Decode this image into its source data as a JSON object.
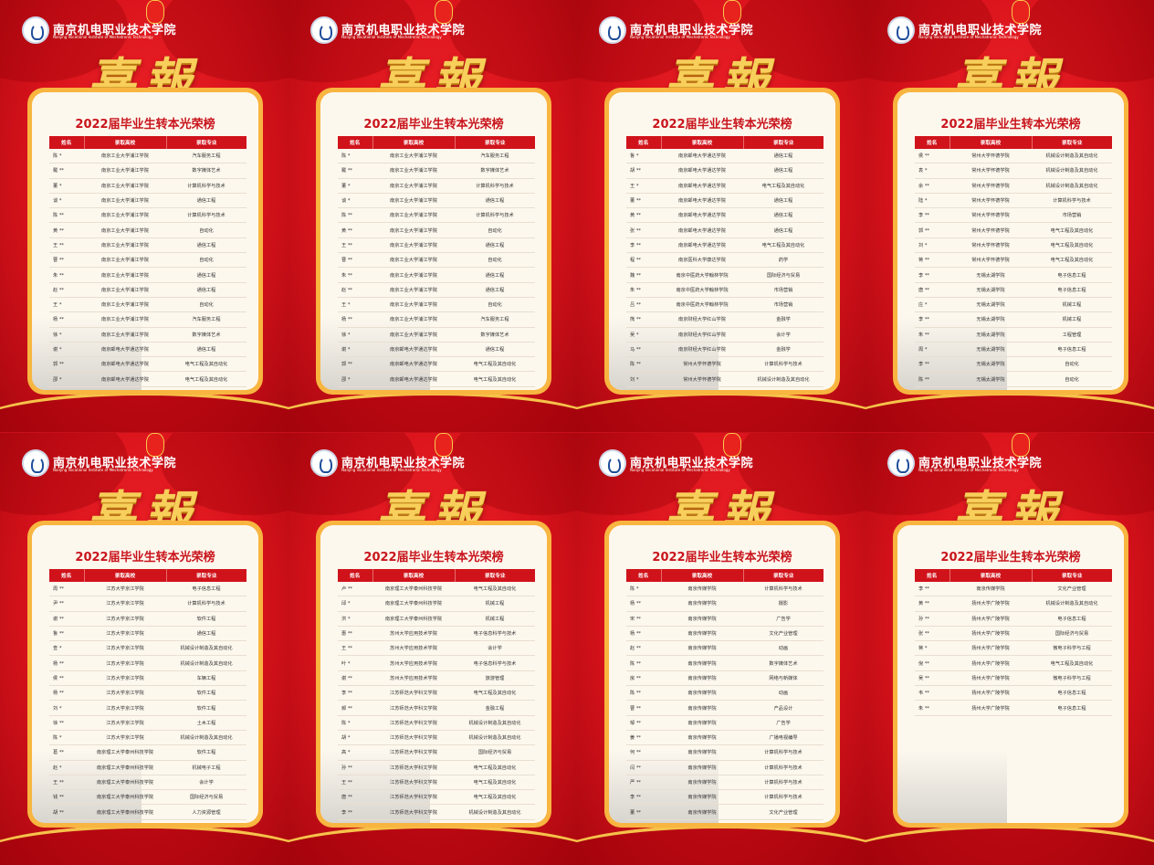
{
  "school_name": "南京机电职业技术学院",
  "school_name_en": "Nanjing Vocational Institute of Mechatronic Technology",
  "headline": "喜報",
  "title": "2022届毕业生转本光荣榜",
  "columns": [
    "姓名",
    "录取高校",
    "录取专业"
  ],
  "colors": {
    "background": "#d8121b",
    "gold": "#f7cf5a",
    "header_red": "#d0131b",
    "card": "#fdf8ee",
    "border": "#f8b540"
  },
  "posters": [
    {
      "rows": [
        [
          "陈 *",
          "南京工业大学浦江学院",
          "汽车服务工程"
        ],
        [
          "戴 **",
          "南京工业大学浦江学院",
          "数字媒体艺术"
        ],
        [
          "董 *",
          "南京工业大学浦江学院",
          "计算机科学与技术"
        ],
        [
          "谈 *",
          "南京工业大学浦江学院",
          "通信工程"
        ],
        [
          "陈 **",
          "南京工业大学浦江学院",
          "计算机科学与技术"
        ],
        [
          "黄 **",
          "南京工业大学浦江学院",
          "自动化"
        ],
        [
          "王 **",
          "南京工业大学浦江学院",
          "通信工程"
        ],
        [
          "曹 **",
          "南京工业大学浦江学院",
          "自动化"
        ],
        [
          "朱 **",
          "南京工业大学浦江学院",
          "通信工程"
        ],
        [
          "赵 **",
          "南京工业大学浦江学院",
          "通信工程"
        ],
        [
          "王 *",
          "南京工业大学浦江学院",
          "自动化"
        ],
        [
          "杨 **",
          "南京工业大学浦江学院",
          "汽车服务工程"
        ],
        [
          "徐 *",
          "南京工业大学浦江学院",
          "数字媒体艺术"
        ],
        [
          "谢 *",
          "南京邮电大学通达学院",
          "通信工程"
        ],
        [
          "郭 **",
          "南京邮电大学通达学院",
          "电气工程及其自动化"
        ],
        [
          "邵 *",
          "南京邮电大学通达学院",
          "电气工程及其自动化"
        ],
        [
          "唐 **",
          "南京邮电大学通达学院",
          "通信工程"
        ]
      ]
    },
    {
      "rows": [
        [
          "陈 *",
          "南京工业大学浦江学院",
          "汽车服务工程"
        ],
        [
          "戴 **",
          "南京工业大学浦江学院",
          "数字媒体艺术"
        ],
        [
          "董 *",
          "南京工业大学浦江学院",
          "计算机科学与技术"
        ],
        [
          "谈 *",
          "南京工业大学浦江学院",
          "通信工程"
        ],
        [
          "陈 **",
          "南京工业大学浦江学院",
          "计算机科学与技术"
        ],
        [
          "黄 **",
          "南京工业大学浦江学院",
          "自动化"
        ],
        [
          "王 **",
          "南京工业大学浦江学院",
          "通信工程"
        ],
        [
          "曹 **",
          "南京工业大学浦江学院",
          "自动化"
        ],
        [
          "朱 **",
          "南京工业大学浦江学院",
          "通信工程"
        ],
        [
          "赵 **",
          "南京工业大学浦江学院",
          "通信工程"
        ],
        [
          "王 *",
          "南京工业大学浦江学院",
          "自动化"
        ],
        [
          "杨 **",
          "南京工业大学浦江学院",
          "汽车服务工程"
        ],
        [
          "徐 *",
          "南京工业大学浦江学院",
          "数字媒体艺术"
        ],
        [
          "谢 *",
          "南京邮电大学通达学院",
          "通信工程"
        ],
        [
          "郭 **",
          "南京邮电大学通达学院",
          "电气工程及其自动化"
        ],
        [
          "邵 *",
          "南京邮电大学通达学院",
          "电气工程及其自动化"
        ],
        [
          "唐 **",
          "南京邮电大学通达学院",
          "通信工程"
        ]
      ]
    },
    {
      "rows": [
        [
          "鲁 *",
          "南京邮电大学通达学院",
          "通信工程"
        ],
        [
          "胡 **",
          "南京邮电大学通达学院",
          "通信工程"
        ],
        [
          "王 *",
          "南京邮电大学通达学院",
          "电气工程及其自动化"
        ],
        [
          "董 **",
          "南京邮电大学通达学院",
          "通信工程"
        ],
        [
          "黄 **",
          "南京邮电大学通达学院",
          "通信工程"
        ],
        [
          "张 **",
          "南京邮电大学通达学院",
          "通信工程"
        ],
        [
          "李 **",
          "南京邮电大学通达学院",
          "电气工程及其自动化"
        ],
        [
          "程 **",
          "南京医科大学康达学院",
          "药学"
        ],
        [
          "魏 **",
          "南京中医药大学翰林学院",
          "国际经济与贸易"
        ],
        [
          "朱 **",
          "南京中医药大学翰林学院",
          "市场营销"
        ],
        [
          "吕 **",
          "南京中医药大学翰林学院",
          "市场营销"
        ],
        [
          "熊 **",
          "南京财经大学红山学院",
          "金融学"
        ],
        [
          "吴 *",
          "南京财经大学红山学院",
          "会计学"
        ],
        [
          "马 **",
          "南京财经大学红山学院",
          "金融学"
        ],
        [
          "陈 **",
          "常州大学怀德学院",
          "计算机科学与技术"
        ],
        [
          "刘 *",
          "常州大学怀德学院",
          "机械设计制造及其自动化"
        ],
        [
          "周 *",
          "常州大学怀德学院",
          "市场营销"
        ]
      ]
    },
    {
      "rows": [
        [
          "侯 **",
          "常州大学怀德学院",
          "机械设计制造及其自动化"
        ],
        [
          "袁 *",
          "常州大学怀德学院",
          "机械设计制造及其自动化"
        ],
        [
          "余 **",
          "常州大学怀德学院",
          "机械设计制造及其自动化"
        ],
        [
          "陆 *",
          "常州大学怀德学院",
          "计算机科学与技术"
        ],
        [
          "李 **",
          "常州大学怀德学院",
          "市场营销"
        ],
        [
          "郭 **",
          "常州大学怀德学院",
          "电气工程及其自动化"
        ],
        [
          "刘 *",
          "常州大学怀德学院",
          "电气工程及其自动化"
        ],
        [
          "蒋 **",
          "常州大学怀德学院",
          "电气工程及其自动化"
        ],
        [
          "李 **",
          "无锡太湖学院",
          "电子信息工程"
        ],
        [
          "唐 **",
          "无锡太湖学院",
          "电子信息工程"
        ],
        [
          "庄 *",
          "无锡太湖学院",
          "机械工程"
        ],
        [
          "李 **",
          "无锡太湖学院",
          "机械工程"
        ],
        [
          "朱 **",
          "无锡太湖学院",
          "工程管理"
        ],
        [
          "周 *",
          "无锡太湖学院",
          "电子信息工程"
        ],
        [
          "李 **",
          "无锡太湖学院",
          "自动化"
        ],
        [
          "陈 **",
          "无锡太湖学院",
          "自动化"
        ],
        [
          "付 **",
          "无锡太湖学院",
          "工商管理"
        ]
      ]
    },
    {
      "rows": [
        [
          "周 **",
          "江苏大学京江学院",
          "电子信息工程"
        ],
        [
          "尹 **",
          "江苏大学京江学院",
          "计算机科学与技术"
        ],
        [
          "谢 **",
          "江苏大学京江学院",
          "软件工程"
        ],
        [
          "鲁 **",
          "江苏大学京江学院",
          "通信工程"
        ],
        [
          "查 *",
          "江苏大学京江学院",
          "机械设计制造及其自动化"
        ],
        [
          "杨 **",
          "江苏大学京江学院",
          "机械设计制造及其自动化"
        ],
        [
          "侯 **",
          "江苏大学京江学院",
          "车辆工程"
        ],
        [
          "杨 **",
          "江苏大学京江学院",
          "软件工程"
        ],
        [
          "刘 *",
          "江苏大学京江学院",
          "软件工程"
        ],
        [
          "徐 **",
          "江苏大学京江学院",
          "土木工程"
        ],
        [
          "陈 *",
          "江苏大学京江学院",
          "机械设计制造及其自动化"
        ],
        [
          "葛 **",
          "南京理工大学泰州科技学院",
          "软件工程"
        ],
        [
          "赵 *",
          "南京理工大学泰州科技学院",
          "机械电子工程"
        ],
        [
          "王 **",
          "南京理工大学泰州科技学院",
          "会计学"
        ],
        [
          "钱 **",
          "南京理工大学泰州科技学院",
          "国际经济与贸易"
        ],
        [
          "胡 **",
          "南京理工大学泰州科技学院",
          "人力资源管理"
        ],
        [
          "史 **",
          "南京理工大学泰州科技学院",
          "电子信息工程"
        ]
      ]
    },
    {
      "rows": [
        [
          "卢 **",
          "南京理工大学泰州科技学院",
          "电气工程及其自动化"
        ],
        [
          "邱 *",
          "南京理工大学泰州科技学院",
          "机械工程"
        ],
        [
          "洪 *",
          "南京理工大学泰州科技学院",
          "机械工程"
        ],
        [
          "惠 **",
          "苏州大学应用技术学院",
          "电子信息科学与技术"
        ],
        [
          "王 **",
          "苏州大学应用技术学院",
          "会计学"
        ],
        [
          "叶 *",
          "苏州大学应用技术学院",
          "电子信息科学与技术"
        ],
        [
          "谢 **",
          "苏州大学应用技术学院",
          "旅游管理"
        ],
        [
          "李 **",
          "江苏师范大学科文学院",
          "电气工程及其自动化"
        ],
        [
          "郝 **",
          "江苏师范大学科文学院",
          "金融工程"
        ],
        [
          "陈 *",
          "江苏师范大学科文学院",
          "机械设计制造及其自动化"
        ],
        [
          "胡 *",
          "江苏师范大学科文学院",
          "机械设计制造及其自动化"
        ],
        [
          "高 *",
          "江苏师范大学科文学院",
          "国际经济与贸易"
        ],
        [
          "孙 **",
          "江苏师范大学科文学院",
          "电气工程及其自动化"
        ],
        [
          "王 **",
          "江苏师范大学科文学院",
          "电气工程及其自动化"
        ],
        [
          "唐 **",
          "江苏师范大学科文学院",
          "电气工程及其自动化"
        ],
        [
          "李 **",
          "江苏师范大学科文学院",
          "机械设计制造及其自动化"
        ],
        [
          "黄 **",
          "江苏师范大学科文学院",
          "财务管理"
        ]
      ]
    },
    {
      "rows": [
        [
          "陈 *",
          "南京传媒学院",
          "计算机科学与技术"
        ],
        [
          "杨 **",
          "南京传媒学院",
          "摄影"
        ],
        [
          "宋 **",
          "南京传媒学院",
          "广告学"
        ],
        [
          "杨 **",
          "南京传媒学院",
          "文化产业管理"
        ],
        [
          "赵 **",
          "南京传媒学院",
          "动画"
        ],
        [
          "陈 **",
          "南京传媒学院",
          "数字媒体艺术"
        ],
        [
          "房 **",
          "南京传媒学院",
          "网络与新媒体"
        ],
        [
          "陈 **",
          "南京传媒学院",
          "动画"
        ],
        [
          "曹 **",
          "南京传媒学院",
          "产品设计"
        ],
        [
          "邹 **",
          "南京传媒学院",
          "广告学"
        ],
        [
          "姜 **",
          "南京传媒学院",
          "广播电视编导"
        ],
        [
          "何 **",
          "南京传媒学院",
          "计算机科学与技术"
        ],
        [
          "闫 **",
          "南京传媒学院",
          "计算机科学与技术"
        ],
        [
          "严 **",
          "南京传媒学院",
          "计算机科学与技术"
        ],
        [
          "李 **",
          "南京传媒学院",
          "计算机科学与技术"
        ],
        [
          "董 **",
          "南京传媒学院",
          "文化产业管理"
        ],
        [
          "赵 **",
          "南京传媒学院",
          "广播电视编导"
        ]
      ]
    },
    {
      "rows": [
        [
          "李 **",
          "南京传媒学院",
          "文化产业管理"
        ],
        [
          "黄 **",
          "扬州大学广陵学院",
          "机械设计制造及其自动化"
        ],
        [
          "孙 **",
          "扬州大学广陵学院",
          "电子信息工程"
        ],
        [
          "张 **",
          "扬州大学广陵学院",
          "国际经济与贸易"
        ],
        [
          "蒋 *",
          "扬州大学广陵学院",
          "微电子科学与工程"
        ],
        [
          "倪 **",
          "扬州大学广陵学院",
          "电气工程及其自动化"
        ],
        [
          "吴 **",
          "扬州大学广陵学院",
          "微电子科学与工程"
        ],
        [
          "韦 **",
          "扬州大学广陵学院",
          "电子信息工程"
        ],
        [
          "朱 **",
          "扬州大学广陵学院",
          "电子信息工程"
        ]
      ]
    }
  ]
}
